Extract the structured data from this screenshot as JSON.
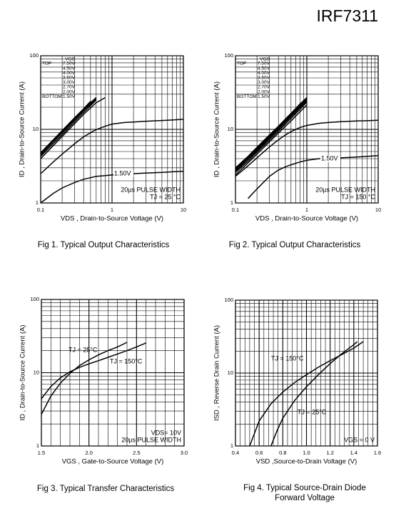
{
  "header": {
    "title": "IRF7311"
  },
  "chart_data": [
    {
      "type": "line",
      "caption": [
        "Fig 1.  Typical Output Characteristics"
      ],
      "xlabel": "VDS , Drain-to-Source Voltage (V)",
      "ylabel": "ID , Drain-to-Source Current (A)",
      "xscale": "log",
      "yscale": "log",
      "xlim": [
        0.1,
        10
      ],
      "ylim": [
        1,
        100
      ],
      "xticks": [
        0.1,
        1,
        10
      ],
      "yticks": [
        1,
        10,
        100
      ],
      "grid": true,
      "minor_grid": true,
      "legend": "upper left",
      "legend_title": "VGS",
      "legend_top": "TOP",
      "legend_bottom": "BOTTOM",
      "notes": [
        "20µs PULSE WIDTH",
        "TJ = 25 °C"
      ],
      "annotations": [
        "1.50V"
      ],
      "x": [
        0.1,
        0.15,
        0.2,
        0.3,
        0.4,
        0.5,
        0.6,
        0.8,
        1,
        1.5,
        2,
        3,
        5,
        7,
        10
      ],
      "series": [
        {
          "name": "7.50V",
          "color": "#000000",
          "values": [
            4.8,
            7.2,
            9.6,
            14.4,
            19,
            24,
            null,
            null,
            null,
            null,
            null,
            null,
            null,
            null,
            null
          ]
        },
        {
          "name": "4.50V",
          "color": "#000000",
          "values": [
            4.7,
            7.0,
            9.3,
            14,
            18.5,
            23,
            27,
            null,
            null,
            null,
            null,
            null,
            null,
            null,
            null
          ]
        },
        {
          "name": "4.00V",
          "color": "#000000",
          "values": [
            4.6,
            6.9,
            9.1,
            13.7,
            18.2,
            22.5,
            26.5,
            null,
            null,
            null,
            null,
            null,
            null,
            null,
            null
          ]
        },
        {
          "name": "3.50V",
          "color": "#000000",
          "values": [
            4.5,
            6.8,
            9,
            13.5,
            18,
            22,
            26,
            null,
            null,
            null,
            null,
            null,
            null,
            null,
            null
          ]
        },
        {
          "name": "3.00V",
          "color": "#000000",
          "values": [
            4.3,
            6.4,
            8.5,
            12.8,
            17,
            21,
            25,
            null,
            null,
            null,
            null,
            null,
            null,
            null,
            null
          ]
        },
        {
          "name": "2.70V",
          "color": "#000000",
          "values": [
            4.0,
            6.0,
            8,
            12,
            16,
            19.5,
            23,
            27,
            null,
            null,
            null,
            null,
            null,
            null,
            null
          ]
        },
        {
          "name": "2.00V",
          "color": "#000000",
          "values": [
            2.5,
            3.6,
            4.6,
            6.4,
            7.9,
            9.0,
            9.9,
            11,
            11.8,
            12.4,
            12.6,
            12.9,
            13.2,
            13.4,
            13.7
          ]
        },
        {
          "name": "1.50V",
          "color": "#000000",
          "values": [
            1.0,
            1.35,
            1.6,
            1.9,
            2.1,
            2.2,
            2.3,
            2.35,
            2.4,
            2.45,
            2.5,
            2.55,
            2.6,
            2.65,
            2.7
          ]
        }
      ]
    },
    {
      "type": "line",
      "caption": [
        "Fig 2.  Typical Output Characteristics"
      ],
      "xlabel": "VDS , Drain-to-Source Voltage (V)",
      "ylabel": "ID , Drain-to-Source Current (A)",
      "xscale": "log",
      "yscale": "log",
      "xlim": [
        0.1,
        10
      ],
      "ylim": [
        1,
        100
      ],
      "xticks": [
        0.1,
        1,
        10
      ],
      "yticks": [
        1,
        10,
        100
      ],
      "grid": true,
      "minor_grid": true,
      "legend": "upper left",
      "legend_title": "VGS",
      "legend_top": "TOP",
      "legend_bottom": "BOTTOM",
      "notes": [
        "20µs PULSE WIDTH",
        "TJ = 150 °C"
      ],
      "annotations": [
        "1.50V"
      ],
      "x": [
        0.1,
        0.15,
        0.2,
        0.3,
        0.4,
        0.5,
        0.6,
        0.8,
        1,
        1.5,
        2,
        3,
        5,
        7,
        10
      ],
      "series": [
        {
          "name": "7.50V",
          "color": "#000000",
          "values": [
            3.0,
            4.3,
            5.7,
            8.4,
            11,
            13.8,
            16.5,
            22,
            27,
            null,
            null,
            null,
            null,
            null,
            null
          ]
        },
        {
          "name": "4.50V",
          "color": "#000000",
          "values": [
            2.9,
            4.2,
            5.5,
            8.1,
            10.7,
            13.3,
            16,
            21,
            26,
            null,
            null,
            null,
            null,
            null,
            null
          ]
        },
        {
          "name": "4.00V",
          "color": "#000000",
          "values": [
            2.8,
            4.1,
            5.3,
            7.8,
            10.4,
            12.9,
            15.4,
            20.5,
            25.5,
            null,
            null,
            null,
            null,
            null,
            null
          ]
        },
        {
          "name": "3.50V",
          "color": "#000000",
          "values": [
            2.7,
            3.9,
            5.1,
            7.6,
            10,
            12.4,
            14.8,
            19.7,
            24.5,
            null,
            null,
            null,
            null,
            null,
            null
          ]
        },
        {
          "name": "3.00V",
          "color": "#000000",
          "values": [
            2.6,
            3.7,
            4.9,
            7.2,
            9.5,
            11.8,
            14,
            18.7,
            23.5,
            null,
            null,
            null,
            null,
            null,
            null
          ]
        },
        {
          "name": "2.70V",
          "color": "#000000",
          "values": [
            2.4,
            3.5,
            4.6,
            6.8,
            8.9,
            11,
            13,
            17.3,
            21.5,
            null,
            null,
            null,
            null,
            null,
            null
          ]
        },
        {
          "name": "2.00V",
          "color": "#000000",
          "values": [
            2.3,
            3.2,
            4.1,
            5.8,
            7.2,
            8.4,
            9.3,
            10.6,
            11.3,
            12.1,
            12.4,
            12.7,
            13,
            13.1,
            13.3
          ]
        },
        {
          "name": "1.50V",
          "color": "#000000",
          "values": [
            null,
            1.15,
            1.55,
            2.3,
            2.8,
            3.1,
            3.3,
            3.6,
            3.8,
            4.0,
            4.05,
            4.1,
            4.2,
            4.3,
            4.4
          ]
        }
      ]
    },
    {
      "type": "line",
      "caption": [
        "Fig 3.  Typical Transfer Characteristics"
      ],
      "xlabel": "VGS , Gate-to-Source Voltage (V)",
      "ylabel": "ID , Drain-to-Source Current (A)",
      "xscale": "linear",
      "yscale": "log",
      "xlim": [
        1.5,
        3.0
      ],
      "ylim": [
        1,
        100
      ],
      "xticks": [
        1.5,
        {
          "value": 2,
          "label": "2.0"
        },
        2.5,
        {
          "value": 3,
          "label": "3.0"
        }
      ],
      "yticks": [
        1,
        10,
        100
      ],
      "grid": true,
      "minor_grid": true,
      "notes": [
        "VDS= 10V",
        "20µs PULSE WIDTH"
      ],
      "series": [
        {
          "name": "TJ = 25°C",
          "color": "#000000",
          "x": [
            1.5,
            1.6,
            1.7,
            1.8,
            1.9,
            2.0,
            2.1,
            2.2,
            2.3,
            2.4
          ],
          "values": [
            2.7,
            4.8,
            7.2,
            9.8,
            12.5,
            15,
            17.5,
            20,
            22.5,
            26
          ]
        },
        {
          "name": "TJ = 150°C",
          "color": "#000000",
          "x": [
            1.5,
            1.6,
            1.7,
            1.8,
            1.9,
            2.0,
            2.1,
            2.2,
            2.3,
            2.4,
            2.5,
            2.6
          ],
          "values": [
            4.4,
            6.5,
            8.5,
            10.3,
            11.8,
            13.2,
            14.6,
            16.2,
            18,
            20,
            22.5,
            25.5
          ]
        }
      ]
    },
    {
      "type": "line",
      "caption": [
        "Fig 4.  Typical Source-Drain Diode",
        "Forward Voltage"
      ],
      "xlabel": "VSD ,Source-to-Drain Voltage (V)",
      "ylabel": "ISD , Reverse Drain Current (A)",
      "xscale": "linear",
      "yscale": "log",
      "xlim": [
        0.4,
        1.6
      ],
      "ylim": [
        1,
        100
      ],
      "xticks": [
        0.4,
        0.6,
        0.8,
        {
          "value": 1,
          "label": "1.0"
        },
        1.2,
        1.4,
        1.6
      ],
      "yticks": [
        1,
        10,
        100
      ],
      "grid": true,
      "minor_grid": true,
      "notes": [
        "VGS = 0 V"
      ],
      "series": [
        {
          "name": "TJ = 150°C",
          "color": "#000000",
          "x": [
            0.52,
            0.6,
            0.7,
            0.8,
            0.9,
            1.0,
            1.1,
            1.2,
            1.3,
            1.4,
            1.48
          ],
          "values": [
            1,
            2.2,
            3.8,
            5.5,
            7.4,
            9.5,
            12,
            14.8,
            18,
            22,
            27
          ]
        },
        {
          "name": "TJ = 25°C",
          "color": "#000000",
          "x": [
            0.7,
            0.75,
            0.8,
            0.9,
            1.0,
            1.1,
            1.2,
            1.3,
            1.4,
            1.43
          ],
          "values": [
            1,
            1.6,
            2.4,
            4.2,
            6.5,
            9.5,
            13.5,
            18.5,
            24.5,
            27
          ]
        }
      ]
    }
  ]
}
